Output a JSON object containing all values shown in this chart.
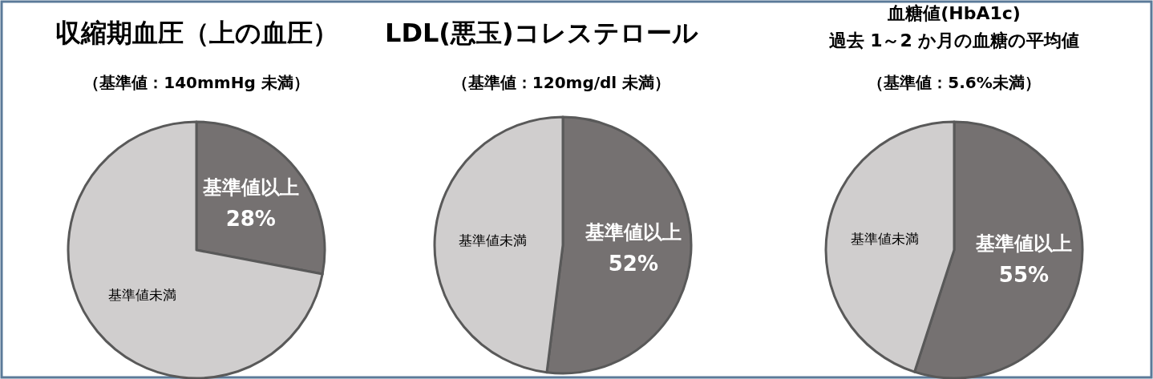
{
  "chart_data": [
    {
      "type": "pie",
      "title": "収縮期血圧（上の血圧）",
      "subtitle": "（基準値：140mmHg 未満）",
      "categories": [
        "基準値以上",
        "基準値未満"
      ],
      "values": [
        28,
        72
      ],
      "colors": [
        "#757171",
        "#d0cece"
      ],
      "value_labels": [
        "28%",
        null
      ]
    },
    {
      "type": "pie",
      "title": "LDL(悪玉)コレステロール",
      "subtitle": "（基準値：120mg/dl 未満）",
      "categories": [
        "基準値以上",
        "基準値未満"
      ],
      "values": [
        52,
        48
      ],
      "colors": [
        "#757171",
        "#d0cece"
      ],
      "value_labels": [
        "52%",
        null
      ]
    },
    {
      "type": "pie",
      "title": "血糖値(HbA1c)\n過去 1～2 か月の血糖の平均値",
      "subtitle": "（基準値：5.6%未満）",
      "categories": [
        "基準値以上",
        "基準値未満"
      ],
      "values": [
        55,
        45
      ],
      "colors": [
        "#757171",
        "#d0cece"
      ],
      "value_labels": [
        "55%",
        null
      ]
    }
  ]
}
